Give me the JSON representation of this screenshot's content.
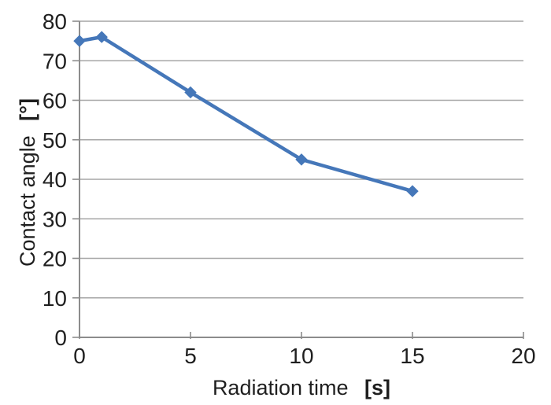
{
  "figure": {
    "background": "#ffffff"
  },
  "chart_data": {
    "type": "line",
    "x": [
      0,
      1,
      5,
      10,
      15
    ],
    "y": [
      75,
      76,
      62,
      45,
      37
    ],
    "xlabel": "Radiation time",
    "xlabel_unit": "[s]",
    "ylabel": "Contact angle",
    "ylabel_unit": "[°]",
    "xlim": [
      0,
      20
    ],
    "ylim": [
      0,
      80
    ],
    "x_ticks": [
      0,
      5,
      10,
      15,
      20
    ],
    "y_ticks": [
      0,
      10,
      20,
      30,
      40,
      50,
      60,
      70,
      80
    ],
    "grid": "horizontal",
    "legend": "none",
    "line_color": "#4577b9",
    "marker": "diamond",
    "marker_color": "#4577b9",
    "gridline_color": "#a6a6a6",
    "axis_color": "#8c8c8c",
    "tick_label_color": "#1f1f1f"
  }
}
